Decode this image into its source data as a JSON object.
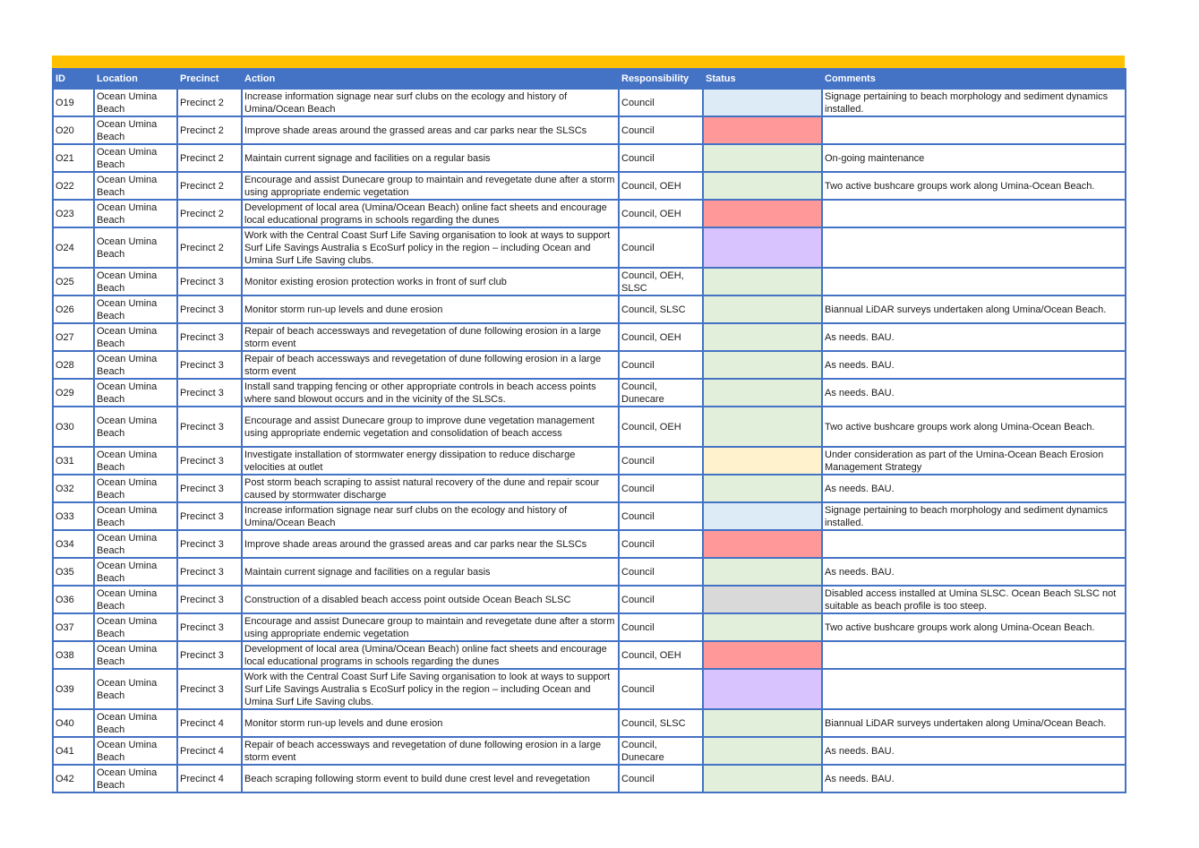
{
  "header_bar_color": "#FFC000",
  "table": {
    "header_color": "#4472C4",
    "columns": [
      "ID",
      "Location",
      "Precinct",
      "Action",
      "Responsibility",
      "Status",
      "Comments"
    ],
    "status_colors": {
      "blue": "#DDEBF7",
      "red": "#FF9999",
      "green": "#E2EFDA",
      "purple": "#D9C3FF",
      "yellow": "#FFF2CC",
      "grey": "#D9D9D9"
    },
    "rows": [
      {
        "id": "O19",
        "location": "Ocean Umina Beach",
        "precinct": "Precinct 2",
        "action": "Increase information  signage near surf clubs on the ecology and history of Umina/Ocean Beach",
        "responsibility": "Council",
        "status": "blue",
        "comments": "Signage pertaining to beach morphology and sediment dynamics installed."
      },
      {
        "id": "O20",
        "location": "Ocean Umina Beach",
        "precinct": "Precinct 2",
        "action": "Improve shade areas  around the grassed areas and  car parks near the SLSCs",
        "responsibility": "Council",
        "status": "red",
        "comments": ""
      },
      {
        "id": "O21",
        "location": "Ocean Umina Beach",
        "precinct": "Precinct 2",
        "action": "Maintain current signage  and facilities on a regular basis",
        "responsibility": "Council",
        "status": "green",
        "comments": "On-going maintenance"
      },
      {
        "id": "O22",
        "location": "Ocean Umina Beach",
        "precinct": "Precinct 2",
        "action": "Encourage and assist  Dunecare group to maintain  and revegetate dune after a storm using appropriate  endemic vegetation",
        "responsibility": "Council, OEH",
        "status": "green",
        "comments": "Two active bushcare groups work along Umina-Ocean Beach."
      },
      {
        "id": "O23",
        "location": "Ocean Umina Beach",
        "precinct": "Precinct 2",
        "action": "Development of local area  (Umina/Ocean Beach) online  fact sheets and encourage  local educational programs in  schools regarding the dunes",
        "responsibility": "Council, OEH",
        "status": "red",
        "comments": ""
      },
      {
        "id": "O24",
        "location": "Ocean Umina Beach",
        "precinct": "Precinct 2",
        "action": "Work with the Central  Coast Surf Life Saving  organisation to look at ways to support Surf Life Savings  Australia    s EcoSurf policy in  the region – including Ocean  and Umina Surf Life Saving  clubs.",
        "responsibility": "Council",
        "status": "purple",
        "comments": ""
      },
      {
        "id": "O25",
        "location": "Ocean Umina Beach",
        "precinct": "Precinct 3",
        "action": "Monitor existing erosion  protection works in front of surf  club",
        "responsibility": "Council, OEH, SLSC",
        "status": "green",
        "comments": ""
      },
      {
        "id": "O26",
        "location": "Ocean Umina Beach",
        "precinct": "Precinct 3",
        "action": "Monitor storm run-up levels  and dune erosion",
        "responsibility": "Council, SLSC",
        "status": "green",
        "comments": "Biannual LiDAR surveys undertaken along Umina/Ocean Beach."
      },
      {
        "id": "O27",
        "location": "Ocean Umina Beach",
        "precinct": "Precinct 3",
        "action": "Repair of beach  accessways and revegetation of  dune following erosion in a large storm event",
        "responsibility": "Council, OEH",
        "status": "green",
        "comments": "As needs. BAU."
      },
      {
        "id": "O28",
        "location": "Ocean Umina Beach",
        "precinct": "Precinct 3",
        "action": "Repair of beach  accessways and revegetation of  dune following erosion in a large storm event",
        "responsibility": "Council",
        "status": "green",
        "comments": "As needs. BAU."
      },
      {
        "id": "O29",
        "location": "Ocean Umina Beach",
        "precinct": "Precinct 3",
        "action": "Install sand trapping fencing  or other appropriate controls in  beach access points where sand  blowout occurs and in the vicinity  of the SLSCs.",
        "responsibility": "Council, Dunecare",
        "status": "green",
        "comments": "As needs. BAU."
      },
      {
        "id": "O30",
        "location": "Ocean Umina Beach",
        "precinct": "Precinct 3",
        "action": " Encourage and assist  Dunecare group to improve dune  vegetation management using  appropriate endemic vegetation  and consolidation of beach  access",
        "responsibility": "Council, OEH",
        "status": "green",
        "comments": "Two active bushcare groups work along Umina-Ocean Beach."
      },
      {
        "id": "O31",
        "location": "Ocean Umina Beach",
        "precinct": "Precinct 3",
        "action": " Investigate installation of  stormwater energy dissipation to  reduce discharge velocities at  outlet",
        "responsibility": "Council",
        "status": "yellow",
        "comments": "Under consideration as part of the Umina-Ocean Beach Erosion Management Strategy"
      },
      {
        "id": "O32",
        "location": "Ocean Umina Beach",
        "precinct": "Precinct 3",
        "action": "Post storm beach scraping  to assist natural recovery of the  dune and repair scour caused by  stormwater discharge",
        "responsibility": "Council",
        "status": "green",
        "comments": "As needs. BAU."
      },
      {
        "id": "O33",
        "location": "Ocean Umina Beach",
        "precinct": "Precinct 3",
        "action": "Increase information  signage near surf clubs on the  ecology and history of Umina/Ocean Beach",
        "responsibility": "Council",
        "status": "blue",
        "comments": "Signage pertaining to beach morphology and sediment dynamics installed."
      },
      {
        "id": "O34",
        "location": "Ocean Umina Beach",
        "precinct": "Precinct 3",
        "action": "Improve shade areas  around the grassed areas and  car parks near the SLSCs",
        "responsibility": "Council",
        "status": "red",
        "comments": ""
      },
      {
        "id": "O35",
        "location": "Ocean Umina Beach",
        "precinct": "Precinct 3",
        "action": "Maintain current signage  and facilities on a regular basis",
        "responsibility": "Council",
        "status": "green",
        "comments": "As needs. BAU."
      },
      {
        "id": "O36",
        "location": "Ocean Umina Beach",
        "precinct": "Precinct 3",
        "action": "Construction of a disabled  beach access point outside  Ocean Beach SLSC",
        "responsibility": "Council",
        "status": "grey",
        "comments": "Disabled access installed at Umina SLSC. Ocean Beach SLSC not suitable as beach profile is too steep."
      },
      {
        "id": "O37",
        "location": "Ocean Umina Beach",
        "precinct": "Precinct 3",
        "action": "Encourage and assist  Dunecare group to maintain and  revegetate dune after a storm  using appropriate endemic  vegetation",
        "responsibility": "Council",
        "status": "green",
        "comments": "Two active bushcare groups work along Umina-Ocean Beach."
      },
      {
        "id": "O38",
        "location": "Ocean Umina Beach",
        "precinct": "Precinct 3",
        "action": "Development of local area  (Umina/Ocean Beach) online  fact sheets and encourage local  educational programs in schools  regarding the dunes",
        "responsibility": "Council, OEH",
        "status": "red",
        "comments": ""
      },
      {
        "id": "O39",
        "location": "Ocean Umina Beach",
        "precinct": "Precinct 3",
        "action": "Work with the Central Coast  Surf Life Saving organisation to  look at ways to support Surf Life  Savings Australia    s EcoSurf  policy in the region – including Ocean and Umina Surf Life  Saving clubs.",
        "responsibility": "Council",
        "status": "purple",
        "comments": ""
      },
      {
        "id": "O40",
        "location": "Ocean Umina Beach",
        "precinct": "Precinct 4",
        "action": "Monitor storm run-up  levels and dune erosion",
        "responsibility": "Council, SLSC",
        "status": "green",
        "comments": "Biannual LiDAR surveys undertaken along Umina/Ocean Beach."
      },
      {
        "id": "O41",
        "location": "Ocean Umina Beach",
        "precinct": "Precinct 4",
        "action": "Repair of beach  accessways and  revegetation of dune  following erosion in a large storm event",
        "responsibility": "Council, Dunecare",
        "status": "green",
        "comments": "As needs. BAU."
      },
      {
        "id": "O42",
        "location": "Ocean Umina Beach",
        "precinct": "Precinct 4",
        "action": "Beach scraping  following storm event to  build dune crest level and  revegetation",
        "responsibility": "Council",
        "status": "green",
        "comments": "As needs. BAU."
      }
    ]
  }
}
